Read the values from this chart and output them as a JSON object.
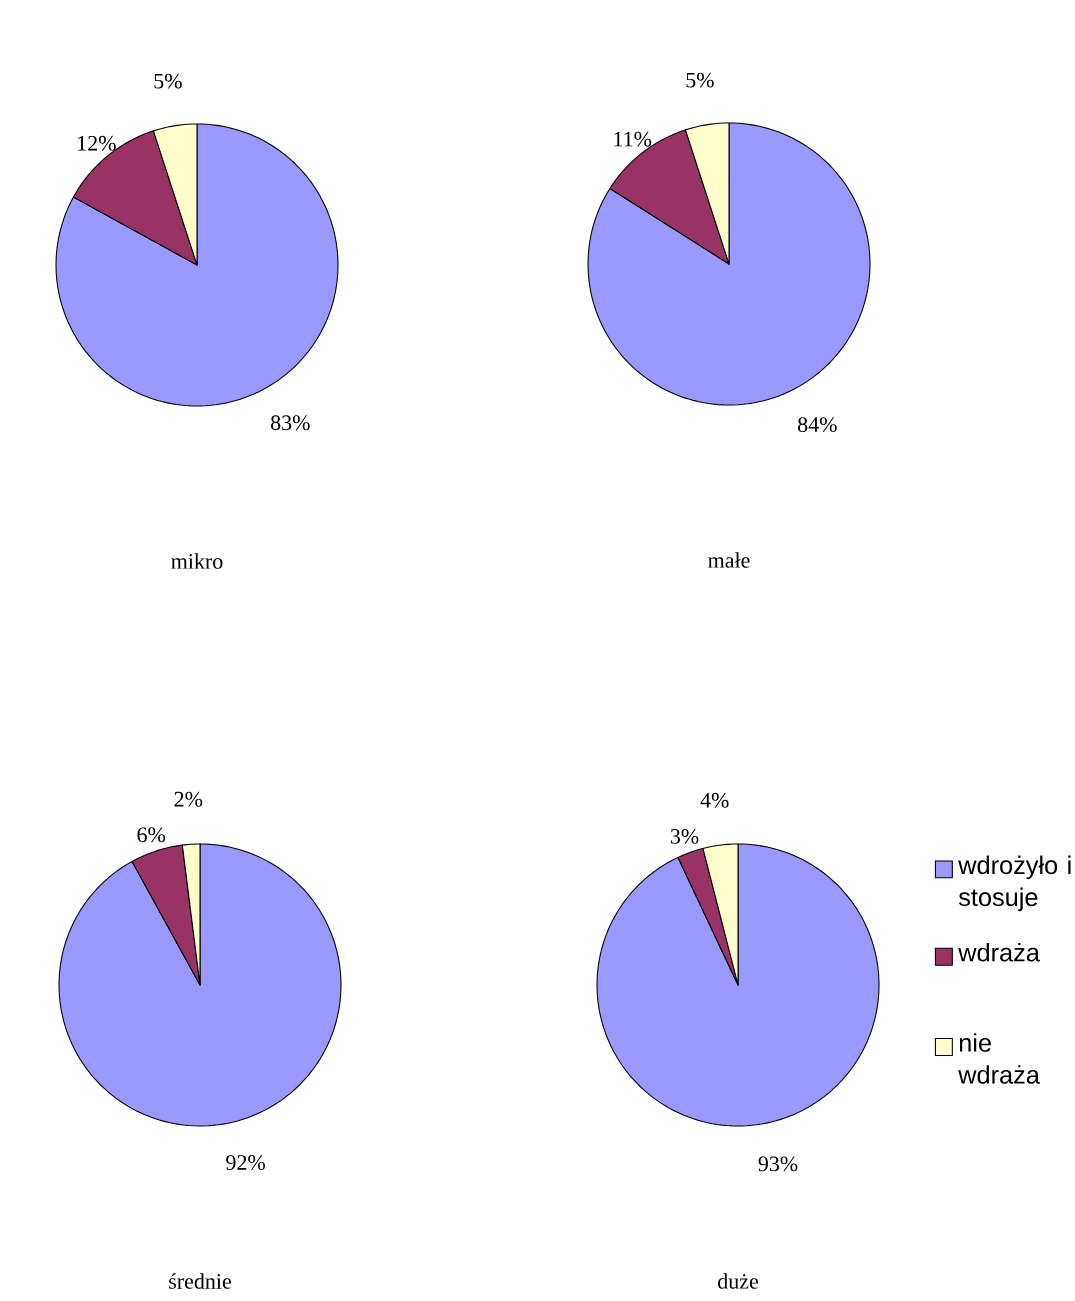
{
  "chart_data": [
    {
      "type": "pie",
      "title": "mikro",
      "categories": [
        null,
        null,
        null
      ],
      "values": [
        83,
        12,
        5
      ],
      "value_labels": [
        "83%",
        "12%",
        "5%"
      ],
      "colors": [
        "#9999ff",
        "#993366",
        "#ffffcc"
      ]
    },
    {
      "type": "pie",
      "title": "małe",
      "categories": [
        null,
        null,
        null
      ],
      "values": [
        84,
        11,
        5
      ],
      "value_labels": [
        "84%",
        "11%",
        "5%"
      ],
      "colors": [
        "#9999ff",
        "#993366",
        "#ffffcc"
      ]
    },
    {
      "type": "pie",
      "title": "średnie",
      "categories": [
        null,
        null,
        null
      ],
      "values": [
        92,
        6,
        2
      ],
      "value_labels": [
        "92%",
        "6%",
        "2%"
      ],
      "colors": [
        "#9999ff",
        "#993366",
        "#ffffcc"
      ]
    },
    {
      "type": "pie",
      "title": "duże",
      "categories": [
        "wdrożyło i stosuje",
        "wdraża",
        "nie wdraża"
      ],
      "values": [
        93,
        3,
        4
      ],
      "value_labels": [
        "93%",
        "3%",
        "4%"
      ],
      "colors": [
        "#9999ff",
        "#993366",
        "#ffffcc"
      ],
      "legend": "right"
    }
  ]
}
